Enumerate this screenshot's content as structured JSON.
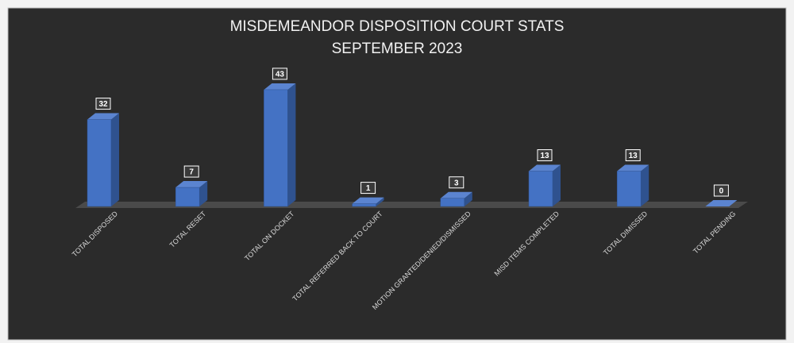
{
  "chart_data": {
    "type": "bar3d",
    "title": "MISDEMEANDOR DISPOSITION COURT STATS",
    "subtitle": "SEPTEMBER 2023",
    "categories": [
      "TOTAL DISPOSED",
      "TOTAL RESET",
      "TOTAL ON DOCKET",
      "TOTAL REFERRED BACK TO COURT",
      "MOTION GRANTED/DENIED/DISMISSED",
      "MISD ITEMS COMPLETED",
      "TOTAL DIMISSED",
      "TOTAL PENDING"
    ],
    "values": [
      32,
      7,
      43,
      1,
      3,
      13,
      13,
      0
    ],
    "color": "#4472c4"
  }
}
